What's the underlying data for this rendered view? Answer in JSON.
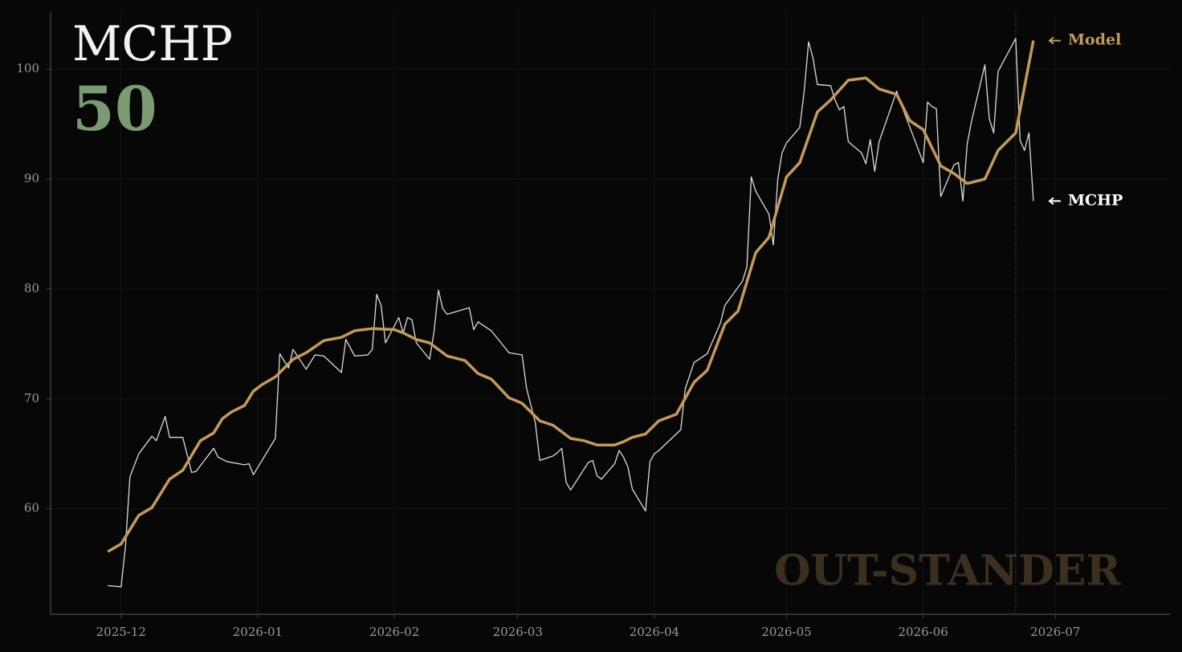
{
  "chart_data": {
    "type": "line",
    "title": "MCHP",
    "score": 50,
    "watermark": "OUT-STANDER",
    "xlim": [
      "2025-11-15",
      "2026-07-27"
    ],
    "xticks": [
      {
        "value": "2025-12-01",
        "label": "2025-12"
      },
      {
        "value": "2026-01-01",
        "label": "2026-01"
      },
      {
        "value": "2026-02-01",
        "label": "2026-02"
      },
      {
        "value": "2026-03-01",
        "label": "2026-03"
      },
      {
        "value": "2026-04-01",
        "label": "2026-04"
      },
      {
        "value": "2026-05-01",
        "label": "2026-05"
      },
      {
        "value": "2026-06-01",
        "label": "2026-06"
      },
      {
        "value": "2026-07-01",
        "label": "2026-07"
      }
    ],
    "ylim": [
      50.4,
      105.2
    ],
    "yticks": [
      60,
      70,
      80,
      90,
      100
    ],
    "grid": true,
    "vline_x": "2026-06-22",
    "series": [
      {
        "name": "MCHP",
        "color": "#dcdcdc",
        "x": [
          "2025-11-28",
          "2025-12-01",
          "2025-12-02",
          "2025-12-03",
          "2025-12-05",
          "2025-12-08",
          "2025-12-09",
          "2025-12-11",
          "2025-12-12",
          "2025-12-15",
          "2025-12-17",
          "2025-12-18",
          "2025-12-22",
          "2025-12-23",
          "2025-12-25",
          "2025-12-29",
          "2025-12-30",
          "2025-12-31",
          "2026-01-05",
          "2026-01-06",
          "2026-01-08",
          "2026-01-09",
          "2026-01-12",
          "2026-01-14",
          "2026-01-16",
          "2026-01-20",
          "2026-01-21",
          "2026-01-23",
          "2026-01-26",
          "2026-01-27",
          "2026-01-28",
          "2026-01-29",
          "2026-01-30",
          "2026-02-02",
          "2026-02-03",
          "2026-02-04",
          "2026-02-05",
          "2026-02-06",
          "2026-02-09",
          "2026-02-10",
          "2026-02-11",
          "2026-02-12",
          "2026-02-13",
          "2026-02-18",
          "2026-02-19",
          "2026-02-20",
          "2026-02-23",
          "2026-02-26",
          "2026-02-27",
          "2026-03-02",
          "2026-03-03",
          "2026-03-04",
          "2026-03-05",
          "2026-03-06",
          "2026-03-09",
          "2026-03-10",
          "2026-03-11",
          "2026-03-12",
          "2026-03-13",
          "2026-03-17",
          "2026-03-18",
          "2026-03-19",
          "2026-03-20",
          "2026-03-23",
          "2026-03-24",
          "2026-03-25",
          "2026-03-26",
          "2026-03-27",
          "2026-03-30",
          "2026-03-31",
          "2026-04-01",
          "2026-04-02",
          "2026-04-07",
          "2026-04-08",
          "2026-04-10",
          "2026-04-13",
          "2026-04-16",
          "2026-04-17",
          "2026-04-21",
          "2026-04-22",
          "2026-04-23",
          "2026-04-24",
          "2026-04-27",
          "2026-04-28",
          "2026-04-29",
          "2026-04-30",
          "2026-05-01",
          "2026-05-04",
          "2026-05-05",
          "2026-05-06",
          "2026-05-07",
          "2026-05-08",
          "2026-05-11",
          "2026-05-12",
          "2026-05-13",
          "2026-05-14",
          "2026-05-15",
          "2026-05-18",
          "2026-05-19",
          "2026-05-20",
          "2026-05-21",
          "2026-05-22",
          "2026-05-26",
          "2026-05-27",
          "2026-05-29",
          "2026-06-01",
          "2026-06-02",
          "2026-06-03",
          "2026-06-04",
          "2026-06-05",
          "2026-06-08",
          "2026-06-09",
          "2026-06-10",
          "2026-06-11",
          "2026-06-12",
          "2026-06-15",
          "2026-06-16",
          "2026-06-17",
          "2026-06-18",
          "2026-06-22",
          "2026-06-23",
          "2026-06-24",
          "2026-06-25",
          "2026-06-26"
        ],
        "values": [
          53.0,
          52.9,
          56.6,
          62.9,
          65.0,
          66.6,
          66.2,
          68.4,
          66.5,
          66.5,
          63.3,
          63.4,
          65.5,
          64.7,
          64.3,
          64.0,
          64.1,
          63.1,
          66.4,
          74.1,
          72.8,
          74.5,
          72.7,
          74.0,
          73.9,
          72.4,
          75.4,
          73.9,
          74.0,
          74.5,
          79.5,
          78.5,
          75.1,
          77.4,
          76.0,
          77.4,
          77.2,
          75.1,
          73.6,
          76.1,
          79.9,
          78.2,
          77.7,
          78.3,
          76.3,
          77.0,
          76.2,
          74.7,
          74.2,
          74.0,
          71.0,
          69.4,
          67.8,
          64.4,
          64.8,
          65.1,
          65.5,
          62.4,
          61.7,
          64.2,
          64.4,
          63.0,
          62.7,
          64.1,
          65.3,
          64.7,
          63.8,
          61.8,
          59.8,
          64.3,
          65.0,
          65.3,
          67.2,
          70.9,
          73.3,
          74.1,
          76.9,
          78.5,
          80.7,
          82.0,
          90.2,
          88.9,
          86.8,
          84.0,
          90.0,
          92.4,
          93.3,
          94.7,
          98.0,
          102.5,
          101.0,
          98.6,
          98.5,
          97.2,
          96.3,
          96.6,
          93.4,
          92.4,
          91.4,
          93.6,
          90.7,
          93.4,
          98.0,
          96.8,
          94.7,
          91.5,
          97.0,
          96.6,
          96.4,
          88.4,
          91.3,
          91.5,
          88.0,
          93.2,
          95.3,
          100.4,
          95.5,
          94.2,
          99.8,
          102.8,
          93.5,
          92.6,
          94.2,
          88.0
        ]
      },
      {
        "name": "Model",
        "color": "#c49a5a",
        "x": [
          "2025-11-28",
          "2025-12-01",
          "2025-12-05",
          "2025-12-08",
          "2025-12-12",
          "2025-12-15",
          "2025-12-19",
          "2025-12-22",
          "2025-12-24",
          "2025-12-26",
          "2025-12-29",
          "2025-12-31",
          "2026-01-02",
          "2026-01-05",
          "2026-01-09",
          "2026-01-12",
          "2026-01-16",
          "2026-01-20",
          "2026-01-23",
          "2026-01-27",
          "2026-02-01",
          "2026-02-03",
          "2026-02-06",
          "2026-02-09",
          "2026-02-13",
          "2026-02-17",
          "2026-02-20",
          "2026-02-23",
          "2026-02-27",
          "2026-03-02",
          "2026-03-06",
          "2026-03-09",
          "2026-03-13",
          "2026-03-16",
          "2026-03-19",
          "2026-03-23",
          "2026-03-25",
          "2026-03-27",
          "2026-03-30",
          "2026-04-02",
          "2026-04-06",
          "2026-04-10",
          "2026-04-13",
          "2026-04-17",
          "2026-04-20",
          "2026-04-24",
          "2026-04-27",
          "2026-05-01",
          "2026-05-04",
          "2026-05-08",
          "2026-05-11",
          "2026-05-15",
          "2026-05-19",
          "2026-05-22",
          "2026-05-26",
          "2026-05-29",
          "2026-06-01",
          "2026-06-05",
          "2026-06-08",
          "2026-06-11",
          "2026-06-15",
          "2026-06-18",
          "2026-06-22",
          "2026-06-26"
        ],
        "values": [
          56.1,
          56.8,
          59.4,
          60.1,
          62.7,
          63.5,
          66.2,
          66.9,
          68.2,
          68.8,
          69.4,
          70.7,
          71.3,
          72.0,
          73.6,
          74.2,
          75.3,
          75.6,
          76.2,
          76.4,
          76.3,
          76.0,
          75.4,
          75.1,
          73.9,
          73.5,
          72.3,
          71.8,
          70.1,
          69.6,
          68.0,
          67.6,
          66.4,
          66.2,
          65.8,
          65.8,
          66.1,
          66.5,
          66.8,
          68.0,
          68.6,
          71.5,
          72.6,
          76.8,
          78.0,
          83.3,
          84.7,
          90.2,
          91.5,
          96.1,
          97.2,
          99.0,
          99.2,
          98.2,
          97.7,
          95.3,
          94.5,
          91.2,
          90.5,
          89.6,
          90.0,
          92.6,
          94.2,
          102.6
        ]
      }
    ]
  }
}
